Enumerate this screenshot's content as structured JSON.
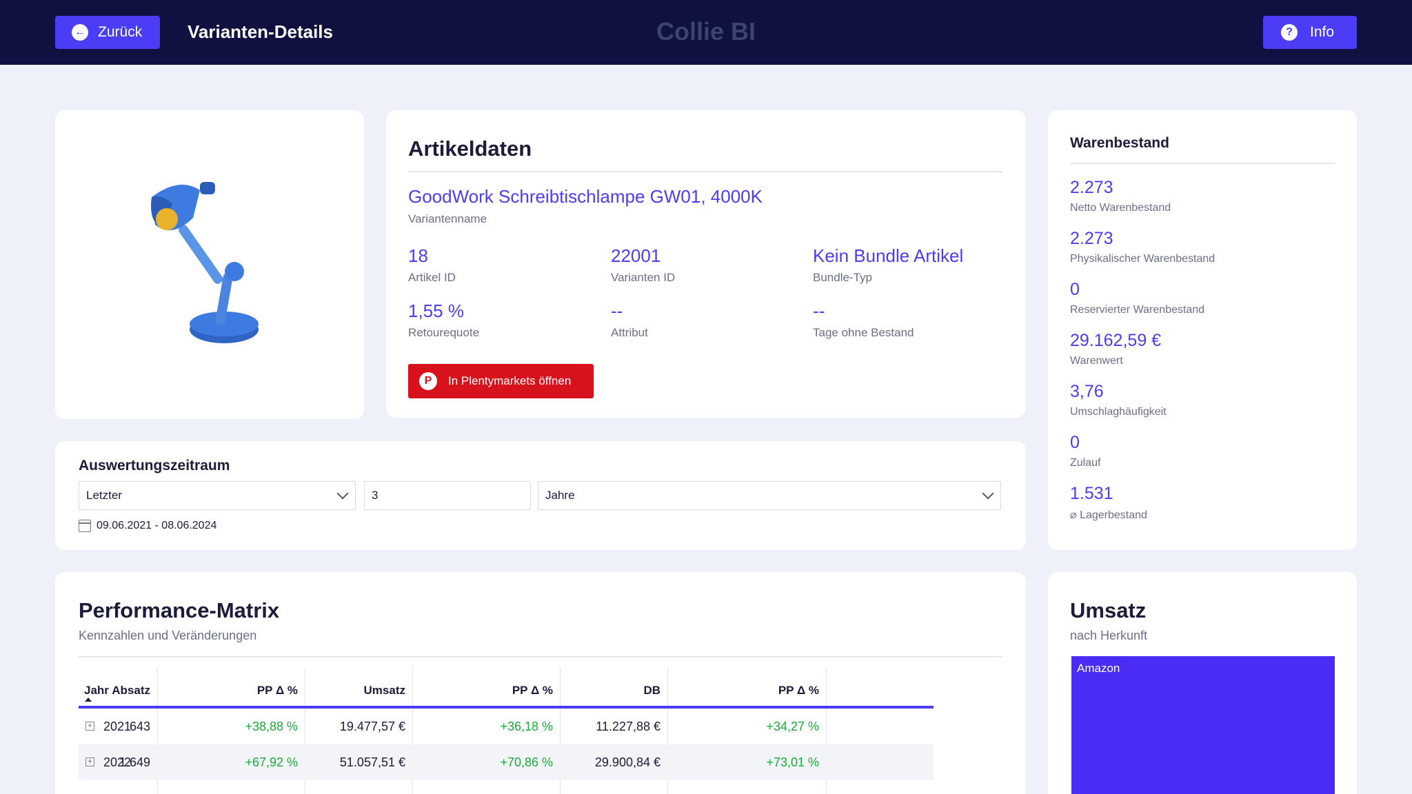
{
  "header": {
    "back_label": "Zurück",
    "title": "Varianten-Details",
    "brand": "Collie BI",
    "info_label": "Info"
  },
  "article": {
    "heading": "Artikeldaten",
    "variant_name": "GoodWork Schreibtischlampe GW01, 4000K",
    "variant_name_label": "Variantenname",
    "fields": [
      {
        "value": "18",
        "label": "Artikel ID"
      },
      {
        "value": "22001",
        "label": "Varianten ID"
      },
      {
        "value": "Kein Bundle Artikel",
        "label": "Bundle-Typ"
      },
      {
        "value": "1,55 %",
        "label": "Retourequote"
      },
      {
        "value": "--",
        "label": "Attribut"
      },
      {
        "value": "--",
        "label": "Tage ohne Bestand"
      }
    ],
    "open_button": "In Plentymarkets öffnen"
  },
  "stock": {
    "title": "Warenbestand",
    "items": [
      {
        "value": "2.273",
        "label": "Netto Warenbestand"
      },
      {
        "value": "2.273",
        "label": "Physikalischer Warenbestand"
      },
      {
        "value": "0",
        "label": "Reservierter Warenbestand"
      },
      {
        "value": "29.162,59 €",
        "label": "Warenwert"
      },
      {
        "value": "3,76",
        "label": "Umschlaghäufigkeit"
      },
      {
        "value": "0",
        "label": "Zulauf"
      },
      {
        "value": "1.531",
        "label": "⌀ Lagerbestand"
      }
    ]
  },
  "period": {
    "title": "Auswertungszeitraum",
    "mode": "Letzter",
    "count": "3",
    "unit": "Jahre",
    "range": "09.06.2021 - 08.06.2024"
  },
  "performance": {
    "title": "Performance-Matrix",
    "subtitle": "Kennzahlen und Veränderungen",
    "columns": [
      "Jahr",
      "Absatz",
      "PP Δ %",
      "Umsatz",
      "PP Δ %",
      "DB",
      "PP Δ %"
    ],
    "rows": [
      {
        "year": "2021",
        "absatz": "643",
        "absatz_pp": "+38,88 %",
        "umsatz": "19.477,57 €",
        "umsatz_pp": "+36,18 %",
        "db": "11.227,88 €",
        "db_pp": "+34,27 %"
      },
      {
        "year": "2022",
        "absatz": "1.649",
        "absatz_pp": "+67,92 %",
        "umsatz": "51.057,51 €",
        "umsatz_pp": "+70,86 %",
        "db": "29.900,84 €",
        "db_pp": "+73,01 %"
      }
    ]
  },
  "revenue": {
    "title": "Umsatz",
    "subtitle": "nach Herkunft",
    "segments": [
      {
        "label": "Amazon",
        "color": "#4a2df5"
      }
    ]
  },
  "colors": {
    "accent": "#4a3df5",
    "topbar": "#0f1240",
    "plenty_red": "#d8121c",
    "positive": "#1aab3a"
  }
}
